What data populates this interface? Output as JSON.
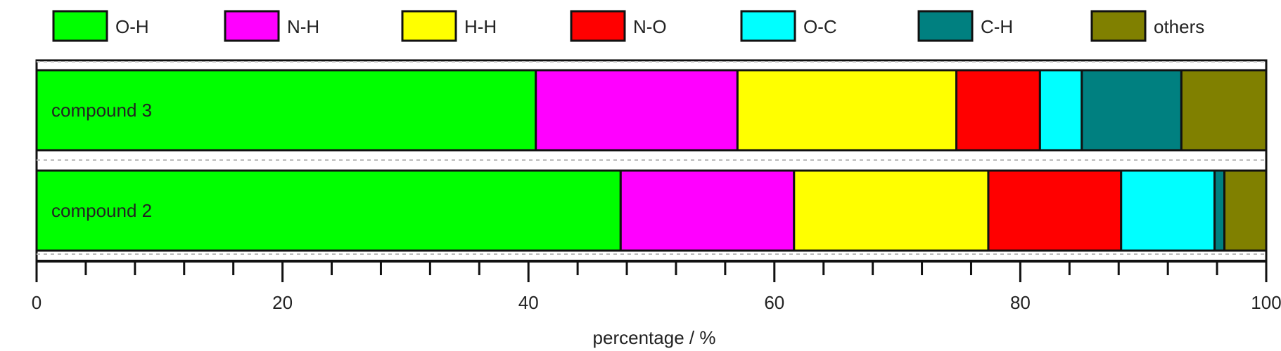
{
  "chart_data": {
    "type": "bar",
    "orientation": "horizontal",
    "stacked": true,
    "categories": [
      "compound 3",
      "compound 2"
    ],
    "series": [
      {
        "name": "O-H",
        "color": "#00ff00",
        "values": [
          40.6,
          47.5
        ]
      },
      {
        "name": "N-H",
        "color": "#ff00ff",
        "values": [
          16.4,
          14.1
        ]
      },
      {
        "name": "H-H",
        "color": "#ffff00",
        "values": [
          17.8,
          15.8
        ]
      },
      {
        "name": "N-O",
        "color": "#ff0000",
        "values": [
          6.8,
          10.8
        ]
      },
      {
        "name": "O-C",
        "color": "#00ffff",
        "values": [
          3.4,
          7.6
        ]
      },
      {
        "name": "C-H",
        "color": "#008080",
        "values": [
          8.1,
          0.8
        ]
      },
      {
        "name": "others",
        "color": "#808000",
        "values": [
          6.9,
          3.4
        ]
      }
    ],
    "xlabel": "percentage / %",
    "ylabel": "",
    "xlim": [
      0,
      100
    ],
    "xticks": [
      0,
      20,
      40,
      60,
      80,
      100
    ],
    "xtick_labels": [
      "0",
      "20",
      "40",
      "60",
      "80",
      "100"
    ],
    "minor_tick_step": 4,
    "legend_position": "top"
  }
}
